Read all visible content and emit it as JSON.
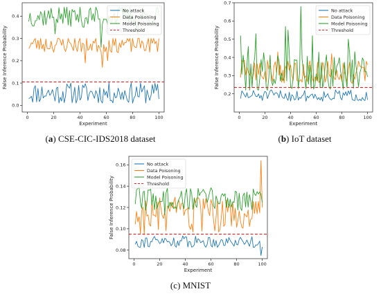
{
  "captions": [
    {
      "letter": "a",
      "text": "CSE-CIC-IDS2018 dataset"
    },
    {
      "letter": "b",
      "text": "IoT dataset"
    },
    {
      "letter": "c",
      "text": "MNIST"
    }
  ],
  "colors": {
    "no_attack": "#1f77b4",
    "data_poisoning": "#ff7f0e",
    "model_poisoning": "#2ca02c",
    "threshold": "#d62728"
  },
  "chart_data": [
    {
      "type": "line",
      "title": "",
      "xlabel": "Experiment",
      "ylabel": "False Inference Probability",
      "xlim": [
        -4,
        104
      ],
      "ylim": [
        -0.03,
        0.46
      ],
      "xticks": [
        0,
        20,
        40,
        60,
        80,
        100
      ],
      "yticks": [
        0.0,
        0.1,
        0.2,
        0.3,
        0.4
      ],
      "ytick_labels": [
        "0.0",
        "0.1",
        "0.2",
        "0.3",
        "0.4"
      ],
      "legend_position": "upper-right",
      "grid": false,
      "x": [
        1,
        100
      ],
      "series": [
        {
          "name": "No attack",
          "color": "#1f77b4",
          "style": "solid",
          "base": 0.055,
          "amp": 0.03,
          "range": [
            0.0,
            0.105
          ],
          "seed": 11,
          "spikes": []
        },
        {
          "name": "Data Poisoning",
          "color": "#ff7f0e",
          "style": "solid",
          "base": 0.275,
          "amp": 0.025,
          "range": [
            0.18,
            0.3
          ],
          "seed": 23,
          "spikes": [
            [
              44,
              0.19
            ],
            [
              57,
              0.17
            ],
            [
              61,
              0.2
            ]
          ]
        },
        {
          "name": "Model Poisoning",
          "color": "#2ca02c",
          "style": "solid",
          "base": 0.4,
          "amp": 0.03,
          "range": [
            0.31,
            0.44
          ],
          "seed": 37,
          "spikes": [
            [
              21,
              0.32
            ],
            [
              43,
              0.35
            ],
            [
              56,
              0.26
            ],
            [
              84,
              0.32
            ]
          ]
        },
        {
          "name": "Threshold",
          "color": "#d62728",
          "style": "dashed",
          "value": 0.105
        }
      ]
    },
    {
      "type": "line",
      "title": "",
      "xlabel": "Experiment",
      "ylabel": "False Inference Probability",
      "xlim": [
        -4,
        104
      ],
      "ylim": [
        0.1,
        0.7
      ],
      "xticks": [
        0,
        20,
        40,
        60,
        80,
        100
      ],
      "yticks": [
        0.2,
        0.3,
        0.4,
        0.5,
        0.6,
        0.7
      ],
      "ytick_labels": [
        "0.2",
        "0.3",
        "0.4",
        "0.5",
        "0.6",
        "0.7"
      ],
      "legend_position": "upper-right",
      "grid": false,
      "x": [
        1,
        100
      ],
      "series": [
        {
          "name": "No attack",
          "color": "#1f77b4",
          "style": "solid",
          "base": 0.19,
          "amp": 0.02,
          "range": [
            0.15,
            0.24
          ],
          "seed": 51,
          "spikes": []
        },
        {
          "name": "Data Poisoning",
          "color": "#ff7f0e",
          "style": "solid",
          "base": 0.32,
          "amp": 0.04,
          "range": [
            0.24,
            0.43
          ],
          "seed": 63,
          "spikes": [
            [
              30,
              0.43
            ],
            [
              72,
              0.42
            ]
          ]
        },
        {
          "name": "Model Poisoning",
          "color": "#2ca02c",
          "style": "solid",
          "base": 0.32,
          "amp": 0.07,
          "range": [
            0.22,
            0.68
          ],
          "seed": 79,
          "spikes": [
            [
              1,
              0.52
            ],
            [
              7,
              0.46
            ],
            [
              13,
              0.53
            ],
            [
              36,
              0.57
            ],
            [
              38,
              0.55
            ],
            [
              48,
              0.68
            ],
            [
              57,
              0.52
            ],
            [
              85,
              0.5
            ]
          ]
        },
        {
          "name": "Threshold",
          "color": "#d62728",
          "style": "dashed",
          "value": 0.235
        }
      ]
    },
    {
      "type": "line",
      "title": "",
      "xlabel": "Experiment",
      "ylabel": "False Inference Probability",
      "xlim": [
        -4,
        104
      ],
      "ylim": [
        0.072,
        0.168
      ],
      "xticks": [
        0,
        20,
        40,
        60,
        80,
        100
      ],
      "yticks": [
        0.08,
        0.1,
        0.12,
        0.14,
        0.16
      ],
      "ytick_labels": [
        "0.08",
        "0.10",
        "0.12",
        "0.14",
        "0.16"
      ],
      "legend_position": "upper-left",
      "grid": false,
      "x": [
        1,
        100
      ],
      "series": [
        {
          "name": "No attack",
          "color": "#1f77b4",
          "style": "solid",
          "base": 0.088,
          "amp": 0.0035,
          "range": [
            0.08,
            0.094
          ],
          "seed": 91,
          "spikes": [
            [
              99,
              0.075
            ]
          ]
        },
        {
          "name": "Data Poisoning",
          "color": "#ff7f0e",
          "style": "solid",
          "base": 0.112,
          "amp": 0.011,
          "range": [
            0.094,
            0.14
          ],
          "seed": 103,
          "spikes": [
            [
              99,
              0.164
            ]
          ]
        },
        {
          "name": "Model Poisoning",
          "color": "#2ca02c",
          "style": "solid",
          "base": 0.128,
          "amp": 0.007,
          "range": [
            0.11,
            0.145
          ],
          "seed": 117,
          "spikes": [
            [
              24,
              0.113
            ]
          ]
        },
        {
          "name": "Threshold",
          "color": "#d62728",
          "style": "dashed",
          "value": 0.095
        }
      ]
    }
  ]
}
